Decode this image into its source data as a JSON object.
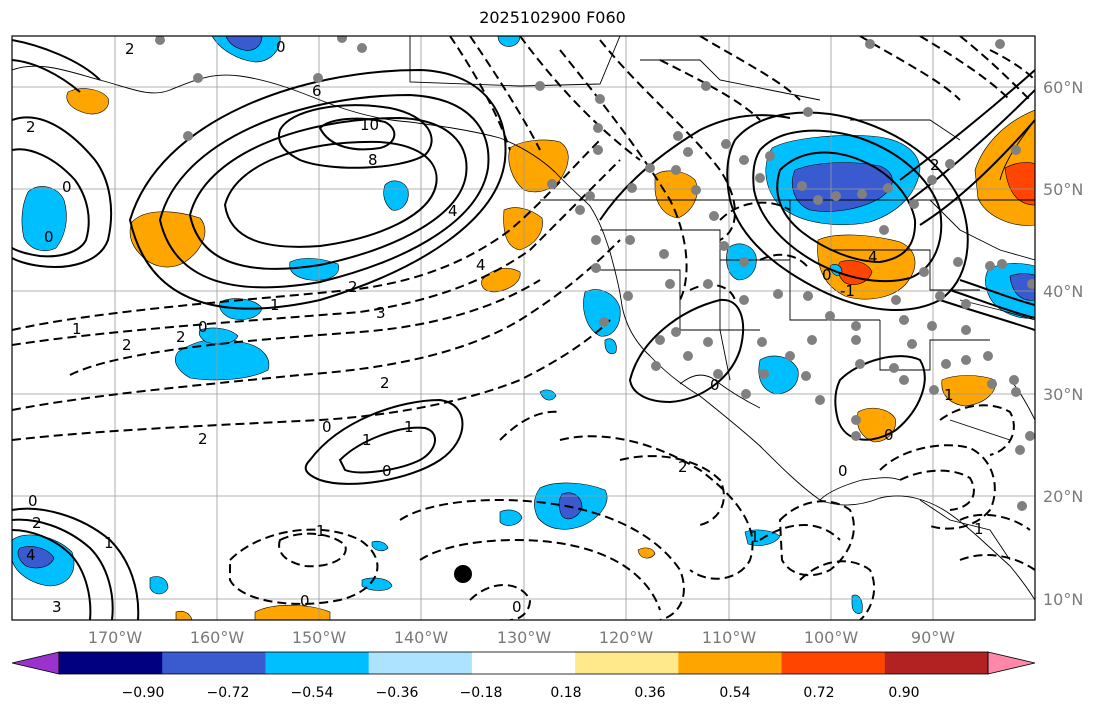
{
  "title": "2025102900 F060",
  "map": {
    "lon_labels": [
      "170°W",
      "160°W",
      "150°W",
      "140°W",
      "130°W",
      "120°W",
      "110°W",
      "100°W",
      "90°W"
    ],
    "lat_labels": [
      "60°N",
      "50°N",
      "40°N",
      "30°N",
      "20°N",
      "10°N"
    ]
  },
  "colorbar": {
    "tick_labels": [
      "−0.90",
      "−0.72",
      "−0.54",
      "−0.36",
      "−0.18",
      "0.18",
      "0.36",
      "0.54",
      "0.72",
      "0.90"
    ],
    "colors": [
      "#9b32cd",
      "#000080",
      "#3a5bd0",
      "#00bfff",
      "#aee3ff",
      "#ffffff",
      "#ffe98a",
      "#ffa500",
      "#ff4500",
      "#b22222",
      "#ff88aa"
    ]
  },
  "contour_labels": [
    {
      "text": "2"
    },
    {
      "text": "0"
    },
    {
      "text": "6"
    },
    {
      "text": "10"
    },
    {
      "text": "8"
    },
    {
      "text": "4"
    },
    {
      "text": "2"
    },
    {
      "text": "0"
    },
    {
      "text": "0"
    },
    {
      "text": "4"
    },
    {
      "text": "1"
    },
    {
      "text": "2"
    },
    {
      "text": "3"
    },
    {
      "text": "1"
    },
    {
      "text": "2"
    },
    {
      "text": "0"
    },
    {
      "text": "2"
    },
    {
      "text": "2"
    },
    {
      "text": "0"
    },
    {
      "text": "1"
    },
    {
      "text": "1"
    },
    {
      "text": "0"
    },
    {
      "text": "0"
    },
    {
      "text": "2"
    },
    {
      "text": "4"
    },
    {
      "text": "3"
    },
    {
      "text": "1"
    },
    {
      "text": "1"
    },
    {
      "text": "0"
    },
    {
      "text": "2"
    },
    {
      "text": "0"
    },
    {
      "text": "2"
    },
    {
      "text": "4"
    },
    {
      "text": "-1"
    },
    {
      "text": "0"
    },
    {
      "text": "2"
    },
    {
      "text": "1"
    },
    {
      "text": "0"
    },
    {
      "text": "1"
    },
    {
      "text": "0"
    },
    {
      "text": "1"
    },
    {
      "text": "0"
    }
  ]
}
